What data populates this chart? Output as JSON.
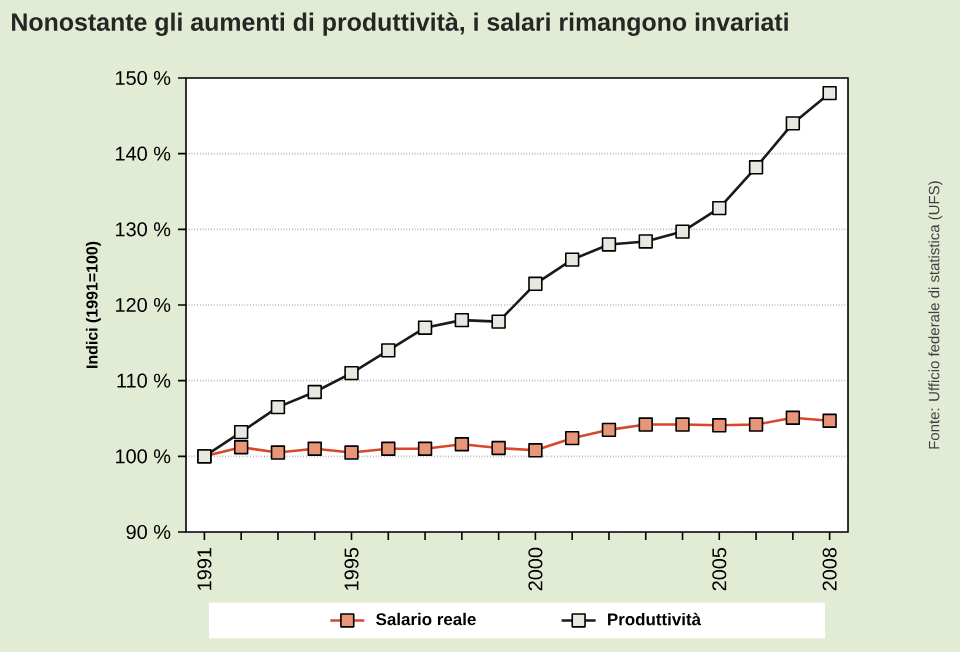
{
  "chart_data": {
    "type": "line",
    "title": "Nonostante gli aumenti di produttività, i salari rimangono invariati",
    "ylabel": "Indici (1991=100)",
    "annotations": [
      "Fonte: Ufficio federale di statistica (UFS)"
    ],
    "x": [
      1991,
      1992,
      1993,
      1994,
      1995,
      1996,
      1997,
      1998,
      1999,
      2000,
      2001,
      2002,
      2003,
      2004,
      2005,
      2006,
      2007,
      2008
    ],
    "series": [
      {
        "name": "Salario reale",
        "color": "#d9472b",
        "values": [
          100,
          101.2,
          100.5,
          101,
          100.5,
          101,
          101,
          101.6,
          101.1,
          100.8,
          102.4,
          103.5,
          104.2,
          104.2,
          104.1,
          104.2,
          105.1,
          104.7
        ]
      },
      {
        "name": "Produttività",
        "color": "#1a1a1a",
        "values": [
          100,
          103.2,
          106.5,
          108.5,
          111,
          114,
          117,
          118,
          117.8,
          122.8,
          126,
          128,
          128.4,
          129.7,
          132.8,
          138.2,
          144,
          148
        ]
      }
    ],
    "xlim": [
      1990.5,
      2008.5
    ],
    "xticks": [
      1991,
      {
        "value": 1992,
        "label": null
      },
      {
        "value": 1993,
        "label": null
      },
      {
        "value": 1994,
        "label": null
      },
      1995,
      {
        "value": 1996,
        "label": null
      },
      {
        "value": 1997,
        "label": null
      },
      {
        "value": 1998,
        "label": null
      },
      {
        "value": 1999,
        "label": null
      },
      2000,
      {
        "value": 2001,
        "label": null
      },
      {
        "value": 2002,
        "label": null
      },
      {
        "value": 2003,
        "label": null
      },
      {
        "value": 2004,
        "label": null
      },
      2005,
      {
        "value": 2006,
        "label": null
      },
      {
        "value": 2007,
        "label": null
      },
      2008
    ],
    "ylim": [
      90,
      150
    ],
    "yticks": [
      {
        "value": 90,
        "label": "90 %"
      },
      {
        "value": 100,
        "label": "100 %"
      },
      {
        "value": 110,
        "label": "110 %"
      },
      {
        "value": 120,
        "label": "120 %"
      },
      {
        "value": 130,
        "label": "130 %"
      },
      {
        "value": 140,
        "label": "140 %"
      },
      {
        "value": 150,
        "label": "150 %"
      }
    ],
    "grid": "y",
    "legend": "bottom",
    "marker": "square",
    "line_style": "solid"
  }
}
